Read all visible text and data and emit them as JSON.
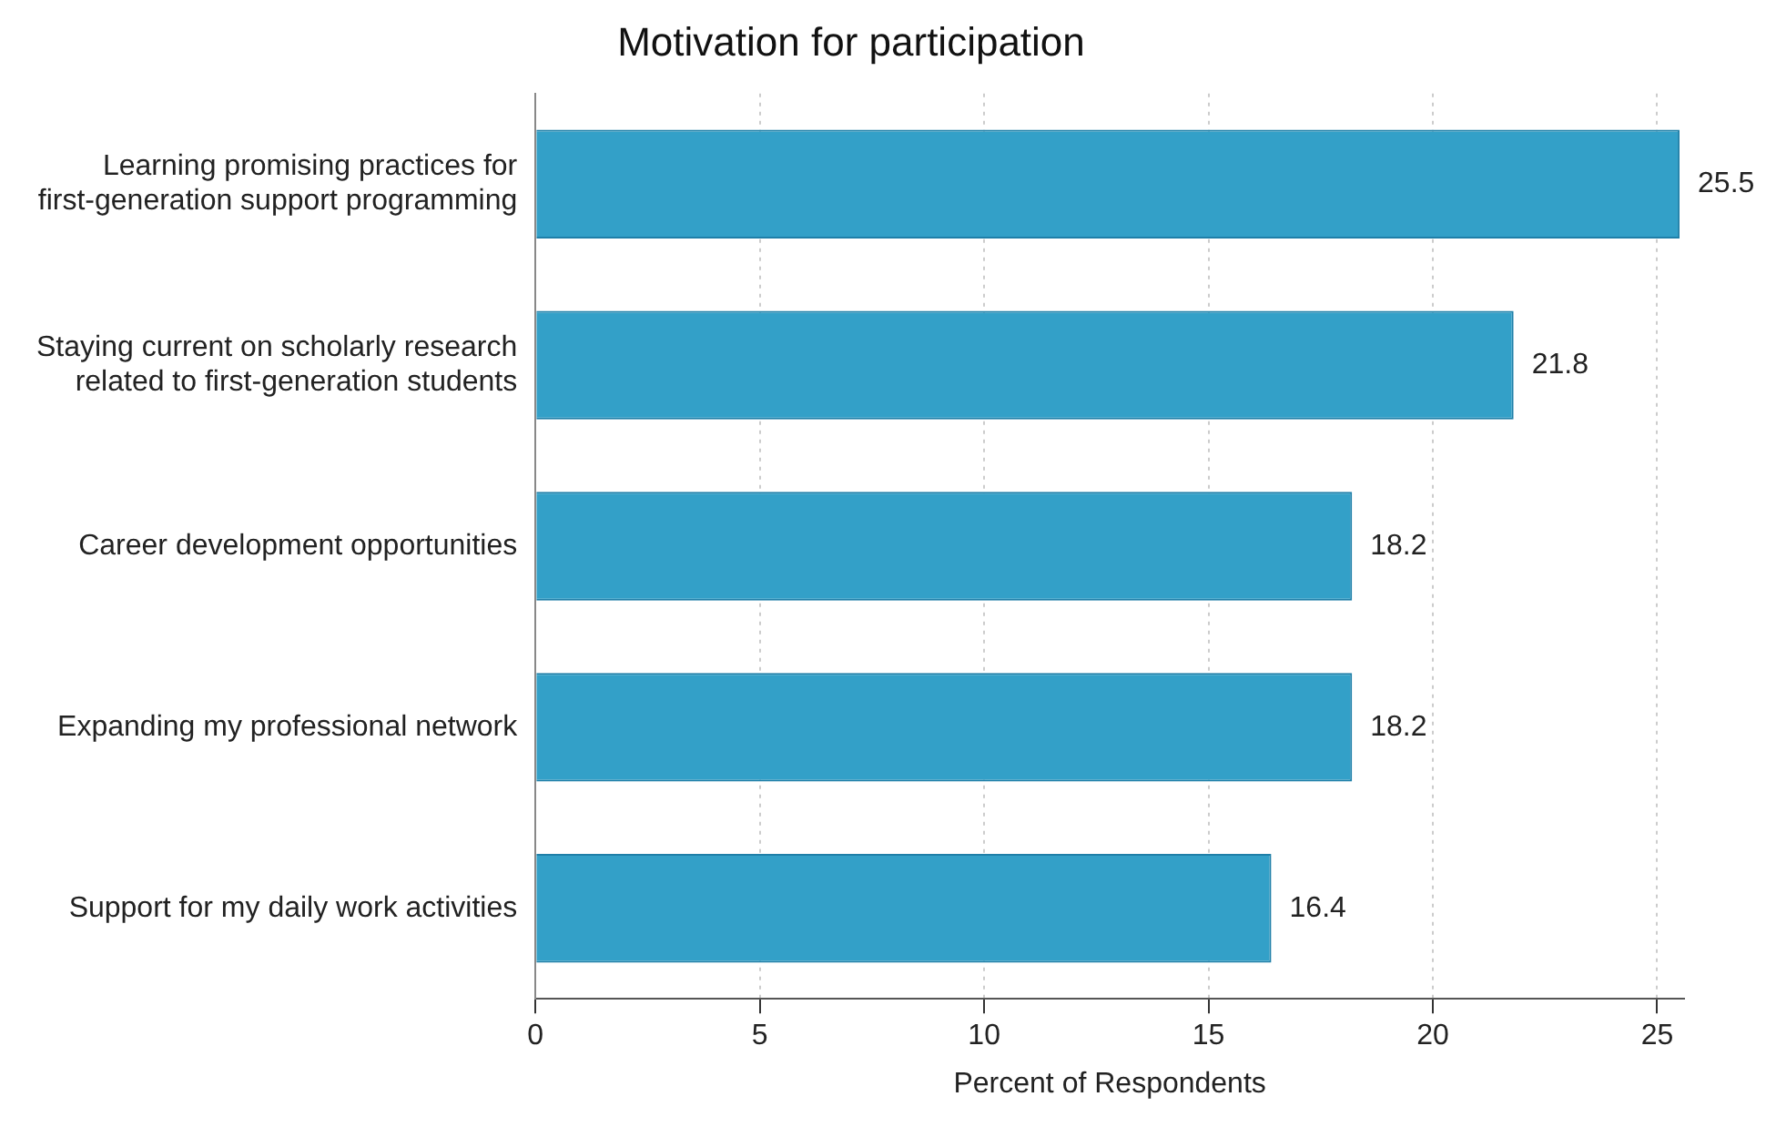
{
  "chart_data": {
    "type": "bar",
    "orientation": "horizontal",
    "title": "Motivation for participation",
    "xlabel": "Percent of Respondents",
    "categories": [
      "Learning promising practices for\nfirst-generation support programming",
      "Staying current on scholarly research\nrelated to first-generation students",
      "Career development opportunities",
      "Expanding my professional network",
      "Support for my daily work activities"
    ],
    "values": [
      25.5,
      21.8,
      18.2,
      18.2,
      16.4
    ],
    "color": "#33a0c8",
    "xlim": [
      0,
      25.6
    ],
    "xticks": [
      0,
      5,
      10,
      15,
      20,
      25
    ],
    "grid": "x",
    "data_labels": true,
    "legend": false
  }
}
